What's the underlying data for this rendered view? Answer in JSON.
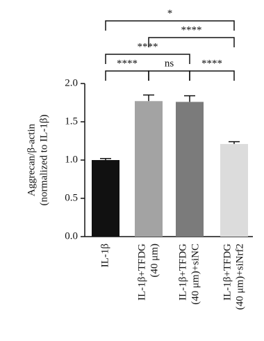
{
  "chart_data": {
    "type": "bar",
    "y_label": [
      "Aggrecan/β-actin",
      "(normalized to IL-1β)"
    ],
    "categories": [
      [
        "IL-1β"
      ],
      [
        "IL-1β+TFDG",
        "(40 μm)"
      ],
      [
        "IL-1β+TFDG",
        "(40 μm)+siNC"
      ],
      [
        "IL-1β+TFDG",
        "(40 μm)+siNrf2"
      ]
    ],
    "values": [
      1.0,
      1.77,
      1.76,
      1.21
    ],
    "errors": [
      0.02,
      0.08,
      0.08,
      0.03
    ],
    "colors": [
      "#111111",
      "#a3a3a3",
      "#7b7b7b",
      "#dcdcdc"
    ],
    "ylim": [
      0,
      2
    ],
    "yticks": [
      {
        "value": 0,
        "label": "0.0"
      },
      {
        "value": 0.5,
        "label": "0.5"
      },
      {
        "value": 1,
        "label": "1.0"
      },
      {
        "value": 1.5,
        "label": "1.5"
      },
      {
        "value": 2,
        "label": "2.0"
      }
    ],
    "comparisons": [
      {
        "from": 0,
        "to": 1,
        "label": "****"
      },
      {
        "from": 1,
        "to": 2,
        "label": "ns"
      },
      {
        "from": 2,
        "to": 3,
        "label": "****"
      },
      {
        "from": 0,
        "to": 2,
        "label": "****"
      },
      {
        "from": 1,
        "to": 3,
        "label": "****"
      },
      {
        "from": 0,
        "to": 3,
        "label": "*"
      }
    ]
  }
}
